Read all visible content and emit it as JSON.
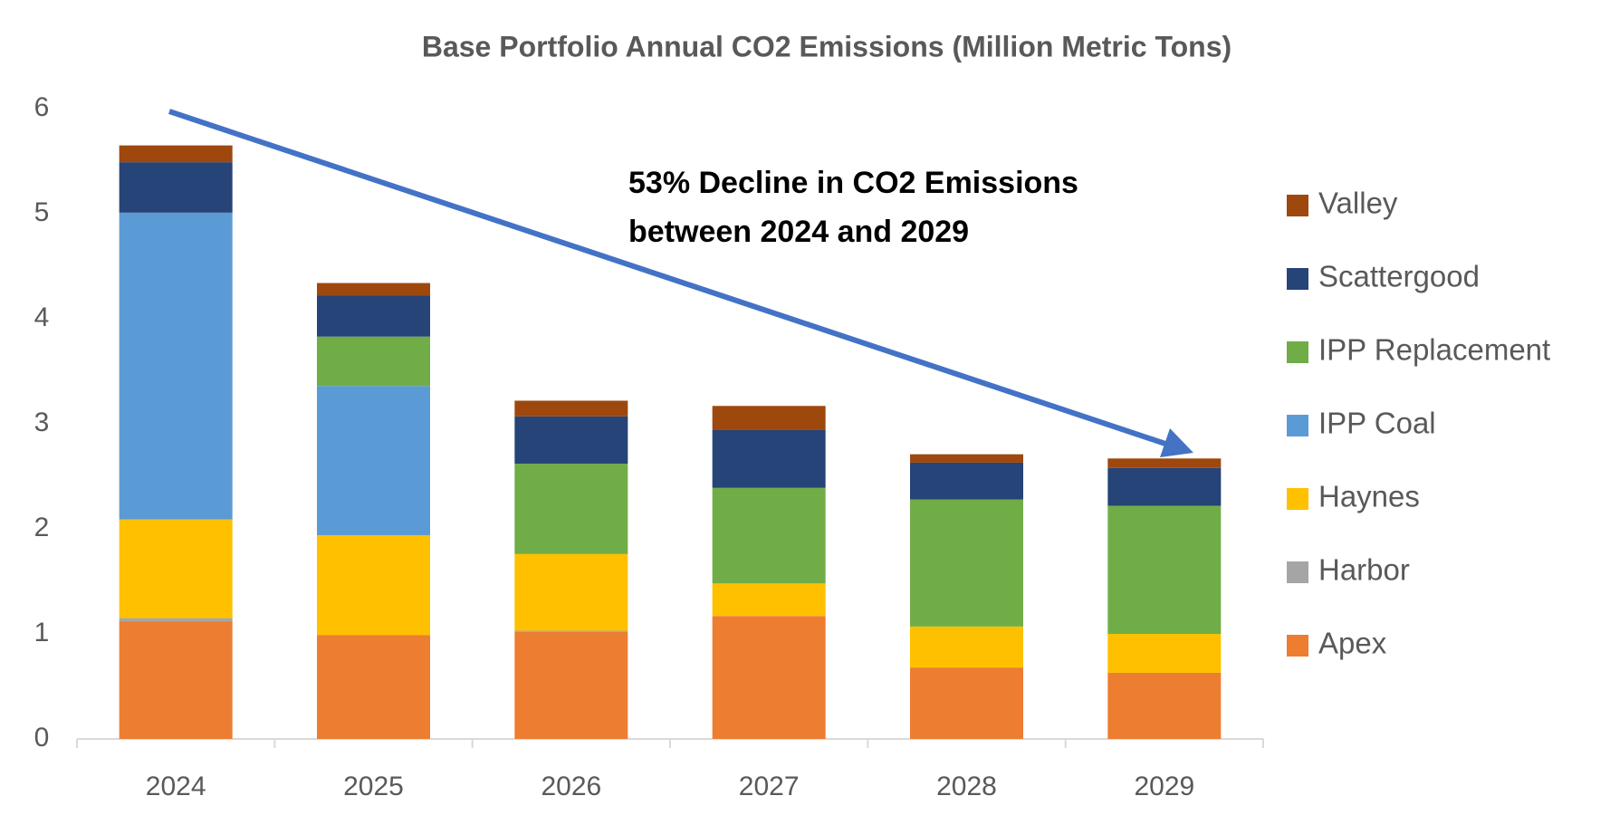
{
  "chart_data": {
    "type": "stacked_bar",
    "title": "Base Portfolio Annual CO2 Emissions (Million Metric Tons)",
    "annotation": [
      "53% Decline in CO2 Emissions",
      "between 2024 and 2029"
    ],
    "categories": [
      "2024",
      "2025",
      "2026",
      "2027",
      "2028",
      "2029"
    ],
    "series": [
      {
        "name": "Apex",
        "color": "#ed7d31",
        "values": [
          1.12,
          0.99,
          1.02,
          1.17,
          0.68,
          0.63
        ]
      },
      {
        "name": "Harbor",
        "color": "#a5a5a5",
        "values": [
          0.03,
          0,
          0.01,
          0,
          0,
          0
        ]
      },
      {
        "name": "Haynes",
        "color": "#ffc000",
        "values": [
          0.94,
          0.95,
          0.73,
          0.31,
          0.39,
          0.37
        ]
      },
      {
        "name": "IPP Coal",
        "color": "#5b9bd5",
        "values": [
          2.92,
          1.42,
          0,
          0,
          0,
          0
        ]
      },
      {
        "name": "IPP Replacement",
        "color": "#70ad47",
        "values": [
          0,
          0.47,
          0.86,
          0.91,
          1.21,
          1.22
        ]
      },
      {
        "name": "Scattergood",
        "color": "#264478",
        "values": [
          0.48,
          0.39,
          0.45,
          0.55,
          0.35,
          0.36
        ]
      },
      {
        "name": "Valley",
        "color": "#9e480e",
        "values": [
          0.16,
          0.12,
          0.15,
          0.23,
          0.08,
          0.09
        ]
      }
    ],
    "ylim": [
      0,
      6
    ],
    "yticks": [
      0,
      1,
      2,
      3,
      4,
      5,
      6
    ],
    "grid": false,
    "legend": "right"
  }
}
